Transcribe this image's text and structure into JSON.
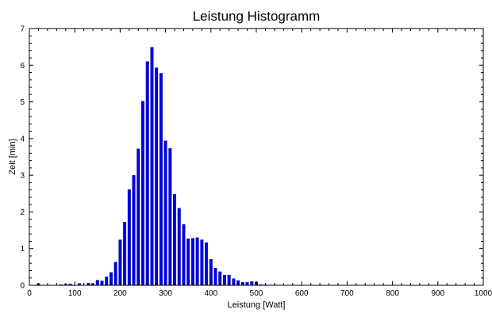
{
  "chart_data": {
    "type": "bar",
    "title": "Leistung Histogramm",
    "xlabel": "Leistung [Watt]",
    "ylabel": "Zeit [min]",
    "xlim": [
      0,
      1000
    ],
    "ylim": [
      0,
      7
    ],
    "grid": false,
    "x_ticks": [
      "0",
      "100",
      "200",
      "300",
      "400",
      "500",
      "600",
      "700",
      "800",
      "900",
      "1000"
    ],
    "y_ticks": [
      "0",
      "1",
      "2",
      "3",
      "4",
      "5",
      "6",
      "7"
    ],
    "bar_color": "#0000ee",
    "bar_edge_color": "#000080",
    "bin_width": 10,
    "x": [
      20,
      70,
      80,
      90,
      110,
      130,
      140,
      150,
      160,
      170,
      180,
      190,
      200,
      210,
      220,
      230,
      240,
      250,
      260,
      270,
      280,
      290,
      300,
      310,
      320,
      330,
      340,
      350,
      360,
      370,
      380,
      390,
      400,
      410,
      420,
      430,
      440,
      450,
      460,
      470,
      480,
      490,
      500,
      510,
      520,
      530,
      540,
      550
    ],
    "values": [
      0.05,
      0.02,
      0.03,
      0.04,
      0.05,
      0.06,
      0.05,
      0.14,
      0.12,
      0.23,
      0.35,
      0.63,
      1.24,
      1.72,
      2.61,
      3.0,
      3.72,
      5.02,
      6.1,
      6.49,
      5.93,
      5.78,
      3.94,
      3.73,
      2.48,
      2.1,
      1.66,
      1.27,
      1.28,
      1.3,
      1.24,
      1.16,
      0.71,
      0.47,
      0.37,
      0.28,
      0.28,
      0.18,
      0.13,
      0.08,
      0.08,
      0.1,
      0.09,
      0.02,
      0.02,
      0.01,
      0.01,
      0.01
    ]
  }
}
